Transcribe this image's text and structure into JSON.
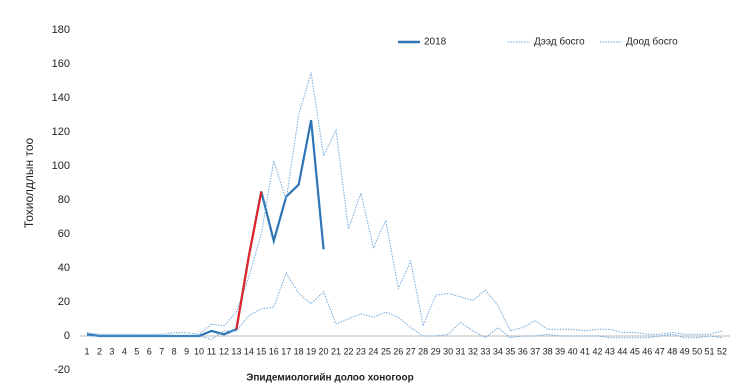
{
  "chart_data": {
    "type": "line",
    "y_label": "Тохиолдлын тоо",
    "x_label": "Эпидемиологийн долоо хоногоор",
    "categories": [
      "1",
      "2",
      "3",
      "4",
      "5",
      "6",
      "7",
      "8",
      "9",
      "10",
      "11",
      "12",
      "13",
      "14",
      "15",
      "16",
      "17",
      "18",
      "19",
      "20",
      "21",
      "22",
      "23",
      "24",
      "25",
      "26",
      "27",
      "28",
      "29",
      "30",
      "31",
      "32",
      "33",
      "34",
      "35",
      "36",
      "37",
      "38",
      "39",
      "40",
      "41",
      "42",
      "43",
      "44",
      "45",
      "46",
      "47",
      "48",
      "49",
      "50",
      "51",
      "52"
    ],
    "series": [
      {
        "name": "2018",
        "color": "#2e75b6",
        "style": "solid",
        "values": [
          1,
          0,
          0,
          0,
          0,
          0,
          0,
          0,
          0,
          0,
          3,
          1,
          4,
          47,
          85,
          56,
          82,
          89,
          127,
          51,
          null,
          null,
          null,
          null,
          null,
          null,
          null,
          null,
          null,
          null,
          null,
          null,
          null,
          null,
          null,
          null,
          null,
          null,
          null,
          null,
          null,
          null,
          null,
          null,
          null,
          null,
          null,
          null,
          null,
          null,
          null,
          null
        ]
      },
      {
        "name": "Дээд босго",
        "color": "#6fa8dc",
        "style": "dotted",
        "values": [
          2,
          1,
          1,
          1,
          1,
          1,
          1,
          2,
          2,
          1,
          7,
          6,
          14,
          35,
          60,
          103,
          80,
          130,
          155,
          106,
          121,
          63,
          84,
          52,
          68,
          28,
          44,
          6,
          24,
          25,
          23,
          21,
          27,
          18,
          3,
          5,
          9,
          4,
          4,
          4,
          3,
          4,
          4,
          2,
          2,
          1,
          1,
          2,
          1,
          1,
          1,
          3
        ]
      },
      {
        "name": "Доод босго",
        "color": "#6fa8dc",
        "style": "dotted",
        "values": [
          0,
          0,
          0,
          0,
          0,
          0,
          0,
          0,
          0,
          0,
          -2,
          3,
          3,
          12,
          16,
          17,
          37,
          25,
          19,
          26,
          7,
          10,
          13,
          11,
          14,
          11,
          5,
          0,
          0,
          1,
          8,
          3,
          -1,
          5,
          -1,
          0,
          0,
          1,
          0,
          0,
          0,
          0,
          -1,
          -1,
          -1,
          -1,
          0,
          1,
          -1,
          -1,
          0,
          -1
        ]
      }
    ],
    "highlight": {
      "series": 0,
      "start": 12,
      "end": 14,
      "color": "#e0262a"
    },
    "ylim": [
      -20,
      180
    ],
    "yticks": [
      -20,
      0,
      20,
      40,
      60,
      80,
      100,
      120,
      140,
      160,
      180
    ],
    "grid": false
  }
}
